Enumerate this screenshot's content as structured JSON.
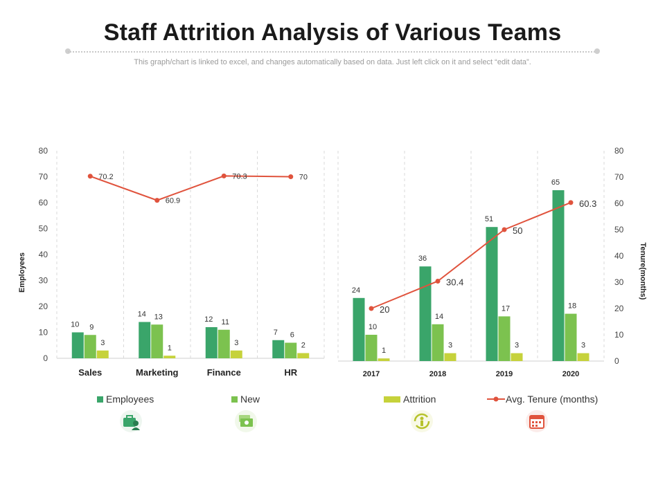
{
  "title": "Staff Attrition Analysis of Various Teams",
  "subtitle": "This graph/chart is linked to excel, and changes automatically based on data. Just left click on it and select “edit data”.",
  "colors": {
    "employees": "#3aa56a",
    "new": "#7cc24f",
    "attrition": "#c6d23b",
    "tenure": "#e0533d",
    "grid": "#d9d9d9",
    "text": "#333333"
  },
  "legend": {
    "employees": "Employees",
    "new": "New",
    "attrition": "Attrition",
    "tenure": "Avg. Tenure (months)"
  },
  "icons": [
    "briefcase-user-icon",
    "money-bill-icon",
    "refresh-person-icon",
    "calendar-icon"
  ],
  "chart_data": [
    {
      "type": "bar",
      "categories": [
        "Sales",
        "Marketing",
        "Finance",
        "HR"
      ],
      "series": [
        {
          "name": "Employees",
          "values": [
            10,
            14,
            12,
            7
          ]
        },
        {
          "name": "New",
          "values": [
            9,
            13,
            11,
            6
          ]
        },
        {
          "name": "Attrition",
          "values": [
            3,
            1,
            3,
            2
          ]
        },
        {
          "name": "Avg. Tenure (months)",
          "type": "line",
          "values": [
            70.2,
            60.9,
            70.3,
            70
          ]
        }
      ],
      "ylabel": "Employees",
      "ylim": [
        0,
        80
      ],
      "yticks": [
        "0",
        "10",
        "20",
        "30",
        "40",
        "50",
        "60",
        "70",
        "80"
      ]
    },
    {
      "type": "bar",
      "categories": [
        "2017",
        "2018",
        "2019",
        "2020"
      ],
      "series": [
        {
          "name": "Employees",
          "values": [
            24,
            36,
            51,
            65
          ]
        },
        {
          "name": "New",
          "values": [
            10,
            14,
            17,
            18
          ]
        },
        {
          "name": "Attrition",
          "values": [
            1,
            3,
            3,
            3
          ]
        },
        {
          "name": "Avg. Tenure (months)",
          "type": "line",
          "values": [
            20,
            30.4,
            50,
            60.3
          ]
        }
      ],
      "ylabel": "Tenure(months)",
      "ylim": [
        0,
        80
      ],
      "yticks": [
        "0",
        "10",
        "20",
        "30",
        "40",
        "50",
        "60",
        "70",
        "80"
      ]
    }
  ]
}
